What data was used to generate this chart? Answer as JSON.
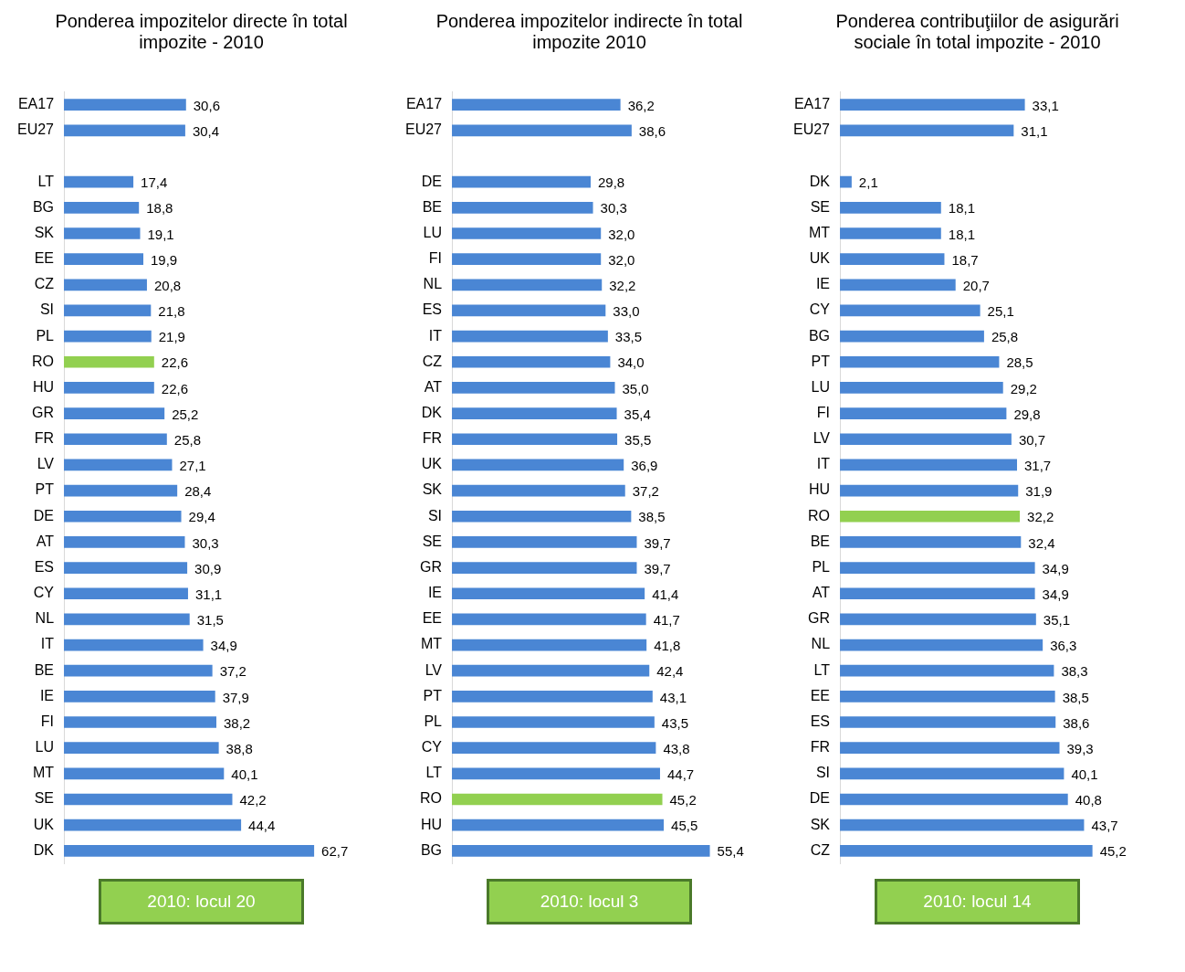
{
  "chart_data": [
    {
      "type": "bar",
      "orientation": "horizontal",
      "title": "Ponderea impozitelor  directe în total impozite - 2010",
      "categories": [
        "EA17",
        "EU27",
        null,
        "LT",
        "BG",
        "SK",
        "EE",
        "CZ",
        "SI",
        "PL",
        "RO",
        "HU",
        "GR",
        "FR",
        "LV",
        "PT",
        "DE",
        "AT",
        "ES",
        "CY",
        "NL",
        "IT",
        "BE",
        "IE",
        "FI",
        "LU",
        "MT",
        "SE",
        "UK",
        "DK"
      ],
      "values": [
        30.6,
        30.4,
        null,
        17.4,
        18.8,
        19.1,
        19.9,
        20.8,
        21.8,
        21.9,
        22.6,
        22.6,
        25.2,
        25.8,
        27.1,
        28.4,
        29.4,
        30.3,
        30.9,
        31.1,
        31.5,
        34.9,
        37.2,
        37.9,
        38.2,
        38.8,
        40.1,
        42.2,
        44.4,
        62.7
      ],
      "value_labels": [
        "30,6",
        "30,4",
        null,
        "17,4",
        "18,8",
        "19,1",
        "19,9",
        "20,8",
        "21,8",
        "21,9",
        "22,6",
        "22,6",
        "25,2",
        "25,8",
        "27,1",
        "28,4",
        "29,4",
        "30,3",
        "30,9",
        "31,1",
        "31,5",
        "34,9",
        "37,2",
        "37,9",
        "38,2",
        "38,8",
        "40,1",
        "42,2",
        "44,4",
        "62,7"
      ],
      "colors": [
        "#4a86d4",
        "#4a86d4",
        "#4a86d4",
        "#4a86d4",
        "#4a86d4",
        "#4a86d4",
        "#4a86d4",
        "#4a86d4",
        "#4a86d4",
        "#4a86d4",
        "#92d050",
        "#4a86d4",
        "#4a86d4",
        "#4a86d4",
        "#4a86d4",
        "#4a86d4",
        "#4a86d4",
        "#4a86d4",
        "#4a86d4",
        "#4a86d4",
        "#4a86d4",
        "#4a86d4",
        "#4a86d4",
        "#4a86d4",
        "#4a86d4",
        "#4a86d4",
        "#4a86d4",
        "#4a86d4",
        "#4a86d4",
        "#4a86d4"
      ],
      "tick_labels": "y",
      "legend": false,
      "annotations": [
        "2010: locul 20"
      ]
    },
    {
      "type": "bar",
      "orientation": "horizontal",
      "title": "Ponderea impozitelor indirecte în total impozite 2010",
      "categories": [
        "EA17",
        "EU27",
        null,
        "DE",
        "BE",
        "LU",
        "FI",
        "NL",
        "ES",
        "IT",
        "CZ",
        "AT",
        "DK",
        "FR",
        "UK",
        "SK",
        "SI",
        "SE",
        "GR",
        "IE",
        "EE",
        "MT",
        "LV",
        "PT",
        "PL",
        "CY",
        "LT",
        "RO",
        "HU",
        "BG"
      ],
      "values": [
        36.2,
        38.6,
        null,
        29.8,
        30.3,
        32.0,
        32.0,
        32.2,
        33.0,
        33.5,
        34.0,
        35.0,
        35.4,
        35.5,
        36.9,
        37.2,
        38.5,
        39.7,
        39.7,
        41.4,
        41.7,
        41.8,
        42.4,
        43.1,
        43.5,
        43.8,
        44.7,
        45.2,
        45.5,
        55.4
      ],
      "value_labels": [
        "36,2",
        "38,6",
        null,
        "29,8",
        "30,3",
        "32,0",
        "32,0",
        "32,2",
        "33,0",
        "33,5",
        "34,0",
        "35,0",
        "35,4",
        "35,5",
        "36,9",
        "37,2",
        "38,5",
        "39,7",
        "39,7",
        "41,4",
        "41,7",
        "41,8",
        "42,4",
        "43,1",
        "43,5",
        "43,8",
        "44,7",
        "45,2",
        "45,5",
        "55,4"
      ],
      "colors": [
        "#4a86d4",
        "#4a86d4",
        "#4a86d4",
        "#4a86d4",
        "#4a86d4",
        "#4a86d4",
        "#4a86d4",
        "#4a86d4",
        "#4a86d4",
        "#4a86d4",
        "#4a86d4",
        "#4a86d4",
        "#4a86d4",
        "#4a86d4",
        "#4a86d4",
        "#4a86d4",
        "#4a86d4",
        "#4a86d4",
        "#4a86d4",
        "#4a86d4",
        "#4a86d4",
        "#4a86d4",
        "#4a86d4",
        "#4a86d4",
        "#4a86d4",
        "#4a86d4",
        "#4a86d4",
        "#92d050",
        "#4a86d4",
        "#4a86d4"
      ],
      "tick_labels": "y",
      "legend": false,
      "annotations": [
        "2010: locul 3"
      ]
    },
    {
      "type": "bar",
      "orientation": "horizontal",
      "title": "Ponderea contribuţiilor de asigurări sociale în total impozite - 2010",
      "categories": [
        "EA17",
        "EU27",
        null,
        "DK",
        "SE",
        "MT",
        "UK",
        "IE",
        "CY",
        "BG",
        "PT",
        "LU",
        "FI",
        "LV",
        "IT",
        "HU",
        "RO",
        "BE",
        "PL",
        "AT",
        "GR",
        "NL",
        "LT",
        "EE",
        "ES",
        "FR",
        "SI",
        "DE",
        "SK",
        "CZ"
      ],
      "values": [
        33.1,
        31.1,
        null,
        2.1,
        18.1,
        18.1,
        18.7,
        20.7,
        25.1,
        25.8,
        28.5,
        29.2,
        29.8,
        30.7,
        31.7,
        31.9,
        32.2,
        32.4,
        34.9,
        34.9,
        35.1,
        36.3,
        38.3,
        38.5,
        38.6,
        39.3,
        40.1,
        40.8,
        43.7,
        45.2
      ],
      "value_labels": [
        "33,1",
        "31,1",
        null,
        "2,1",
        "18,1",
        "18,1",
        "18,7",
        "20,7",
        "25,1",
        "25,8",
        "28,5",
        "29,2",
        "29,8",
        "30,7",
        "31,7",
        "31,9",
        "32,2",
        "32,4",
        "34,9",
        "34,9",
        "35,1",
        "36,3",
        "38,3",
        "38,5",
        "38,6",
        "39,3",
        "40,1",
        "40,8",
        "43,7",
        "45,2"
      ],
      "colors": [
        "#4a86d4",
        "#4a86d4",
        "#4a86d4",
        "#4a86d4",
        "#4a86d4",
        "#4a86d4",
        "#4a86d4",
        "#4a86d4",
        "#4a86d4",
        "#4a86d4",
        "#4a86d4",
        "#4a86d4",
        "#4a86d4",
        "#4a86d4",
        "#4a86d4",
        "#4a86d4",
        "#92d050",
        "#4a86d4",
        "#4a86d4",
        "#4a86d4",
        "#4a86d4",
        "#4a86d4",
        "#4a86d4",
        "#4a86d4",
        "#4a86d4",
        "#4a86d4",
        "#4a86d4",
        "#4a86d4",
        "#4a86d4",
        "#4a86d4"
      ],
      "tick_labels": "y",
      "legend": false,
      "annotations": [
        "2010: locul 14"
      ]
    }
  ]
}
